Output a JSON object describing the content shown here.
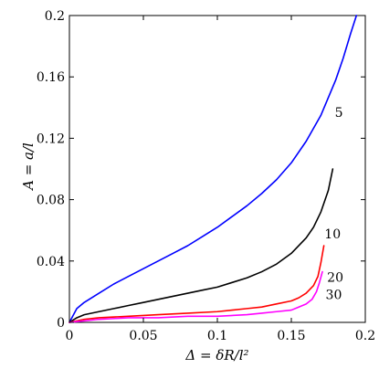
{
  "chart_data": {
    "type": "line",
    "title": "",
    "xlabel": "Δ = δR/l²",
    "ylabel": "A = a/l",
    "xlim": [
      0,
      0.2
    ],
    "ylim": [
      0,
      0.2
    ],
    "xticks": [
      "0",
      "0.05",
      "0.1",
      "0.15",
      "0.2"
    ],
    "yticks": [
      "0",
      "0.04",
      "0.08",
      "0.12",
      "0.16",
      "0.2"
    ],
    "grid": false,
    "legend": "none",
    "series": [
      {
        "label": "5",
        "color": "#0000ff",
        "x": [
          0,
          0.005,
          0.01,
          0.02,
          0.03,
          0.04,
          0.05,
          0.06,
          0.07,
          0.08,
          0.09,
          0.1,
          0.11,
          0.12,
          0.13,
          0.14,
          0.15,
          0.16,
          0.17,
          0.18,
          0.185,
          0.19,
          0.194
        ],
        "y": [
          0,
          0.009,
          0.013,
          0.019,
          0.025,
          0.03,
          0.035,
          0.04,
          0.045,
          0.05,
          0.056,
          0.062,
          0.069,
          0.076,
          0.084,
          0.093,
          0.104,
          0.118,
          0.135,
          0.158,
          0.172,
          0.188,
          0.2
        ]
      },
      {
        "label": "10",
        "color": "#000000",
        "x": [
          0,
          0.005,
          0.01,
          0.02,
          0.03,
          0.04,
          0.05,
          0.06,
          0.07,
          0.08,
          0.09,
          0.1,
          0.11,
          0.12,
          0.13,
          0.14,
          0.15,
          0.16,
          0.165,
          0.17,
          0.175,
          0.178
        ],
        "y": [
          0,
          0.003,
          0.005,
          0.007,
          0.009,
          0.011,
          0.013,
          0.015,
          0.017,
          0.019,
          0.021,
          0.023,
          0.026,
          0.029,
          0.033,
          0.038,
          0.045,
          0.055,
          0.062,
          0.072,
          0.086,
          0.1
        ]
      },
      {
        "label": "20",
        "color": "#ff0000",
        "x": [
          0,
          0.01,
          0.02,
          0.04,
          0.06,
          0.08,
          0.1,
          0.11,
          0.12,
          0.13,
          0.14,
          0.15,
          0.155,
          0.16,
          0.165,
          0.168,
          0.17,
          0.172
        ],
        "y": [
          0,
          0.002,
          0.003,
          0.004,
          0.005,
          0.006,
          0.007,
          0.008,
          0.009,
          0.01,
          0.012,
          0.014,
          0.016,
          0.019,
          0.024,
          0.03,
          0.039,
          0.05
        ]
      },
      {
        "label": "30",
        "color": "#ff00ff",
        "x": [
          0,
          0.01,
          0.02,
          0.04,
          0.06,
          0.08,
          0.1,
          0.12,
          0.13,
          0.14,
          0.15,
          0.155,
          0.16,
          0.164,
          0.167,
          0.169,
          0.171
        ],
        "y": [
          0,
          0.001,
          0.002,
          0.003,
          0.003,
          0.004,
          0.004,
          0.005,
          0.006,
          0.007,
          0.008,
          0.01,
          0.012,
          0.015,
          0.02,
          0.026,
          0.033
        ]
      }
    ]
  }
}
